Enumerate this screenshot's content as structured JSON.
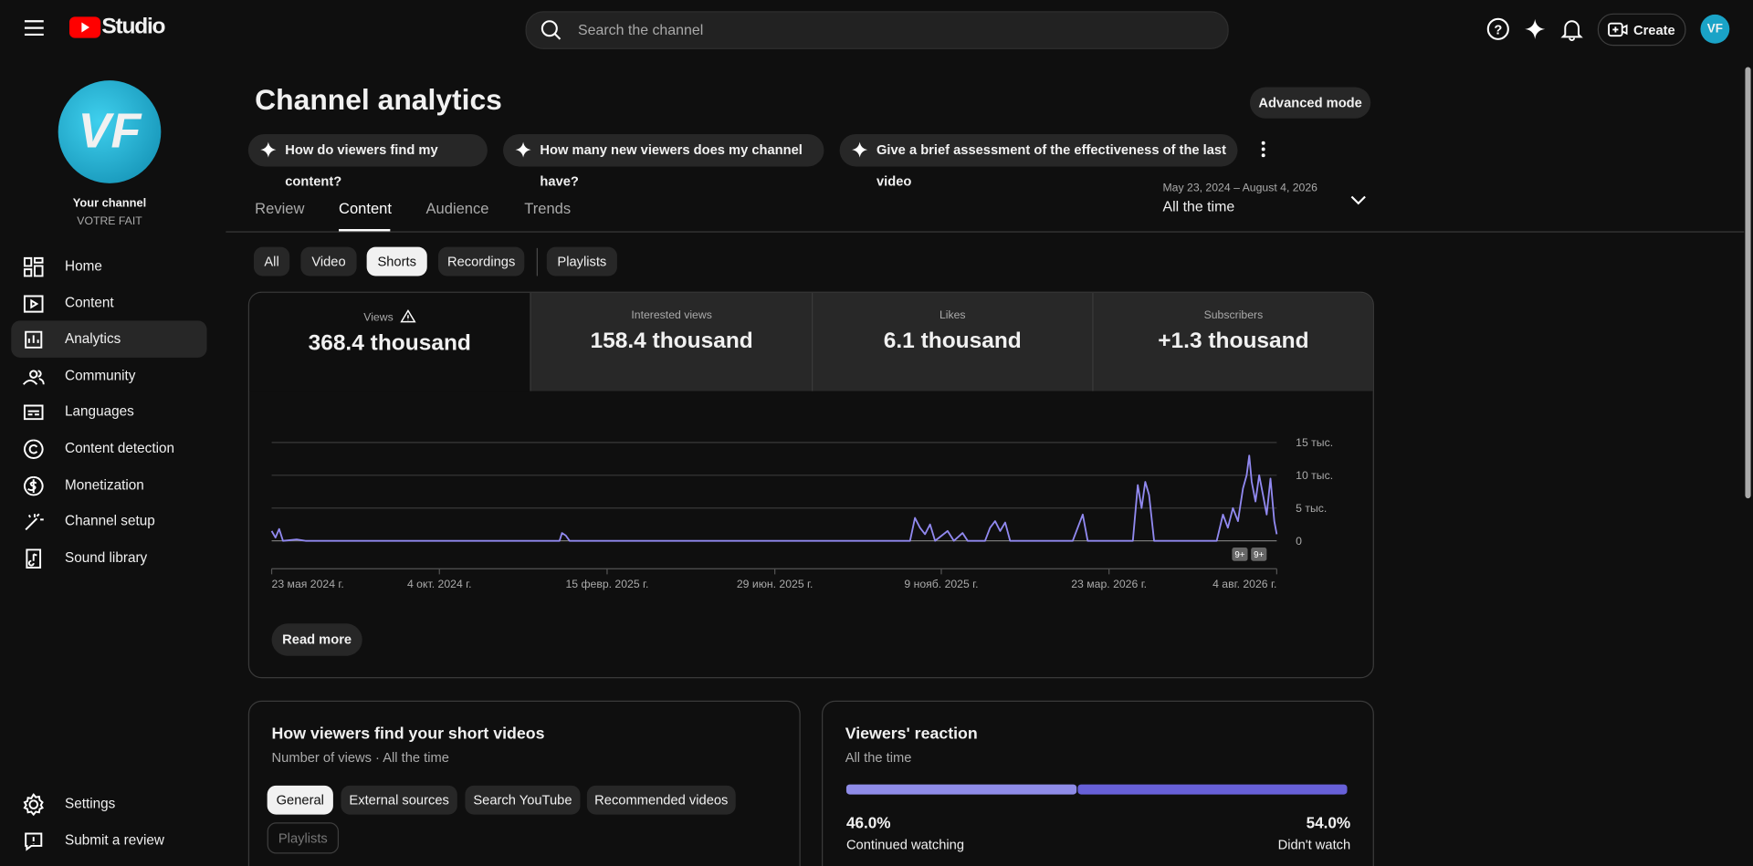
{
  "header": {
    "logo": "Studio",
    "search_placeholder": "Search the channel",
    "create": "Create",
    "avatar": "VF"
  },
  "sidebar": {
    "avatar": "VF",
    "channel_label": "Your channel",
    "channel_name": "VOTRE FAIT",
    "nav": [
      "Home",
      "Content",
      "Analytics",
      "Community",
      "Languages",
      "Content detection",
      "Monetization",
      "Channel setup",
      "Sound library"
    ],
    "active": "Analytics",
    "bottom": [
      "Settings",
      "Submit a review"
    ]
  },
  "page": {
    "title": "Channel analytics",
    "advanced_mode": "Advanced mode",
    "suggestions": [
      "How do viewers find my content?",
      "How many new viewers does my channel have?",
      "Give a brief assessment of the effectiveness of the last video"
    ],
    "tabs": [
      "Review",
      "Content",
      "Audience",
      "Trends"
    ],
    "active_tab": "Content",
    "date_range": "May 23, 2024 – August 4, 2026",
    "period": "All the time",
    "filters": [
      "All",
      "Video",
      "Shorts",
      "Recordings",
      "Playlists"
    ],
    "active_filter": "Shorts",
    "metrics": [
      {
        "label": "Views",
        "value": "368.4 thousand"
      },
      {
        "label": "Interested views",
        "value": "158.4 thousand"
      },
      {
        "label": "Likes",
        "value": "6.1 thousand"
      },
      {
        "label": "Subscribers",
        "value": "+1.3 thousand"
      }
    ],
    "read_more": "Read more"
  },
  "chart": {
    "type": "line",
    "ylim": [
      0,
      15000
    ],
    "yticks": [
      0,
      {
        "value": 5000,
        "label": "5 тыс."
      },
      {
        "value": 10000,
        "label": "10 тыс."
      },
      {
        "value": 15000,
        "label": "15 тыс."
      }
    ],
    "xlim": [
      0,
      803
    ],
    "xticks": [
      {
        "value": 0,
        "label": "23 мая 2024 г."
      },
      {
        "value": 134,
        "label": "4 окт. 2024 г."
      },
      {
        "value": 268,
        "label": "15 февр. 2025 г."
      },
      {
        "value": 402,
        "label": "29 июн. 2025 г."
      },
      {
        "value": 535,
        "label": "9 нояб. 2025 г."
      },
      {
        "value": 669,
        "label": "23 мар. 2026 г."
      },
      {
        "value": 803,
        "label": "4 авг. 2026 г."
      }
    ],
    "grid": true,
    "badges": [
      "9+",
      "9+"
    ],
    "series": [
      {
        "color": "#9189f0",
        "x": [
          0,
          3,
          6,
          9,
          20,
          27,
          230,
          232,
          235,
          238,
          510,
          514,
          518,
          522,
          526,
          530,
          540,
          545,
          552,
          556,
          570,
          574,
          578,
          582,
          586,
          590,
          640,
          645,
          648,
          652,
          688,
          692,
          695,
          698,
          701,
          705,
          755,
          760,
          764,
          768,
          772,
          776,
          779,
          781,
          783,
          786,
          789,
          792,
          795,
          798,
          801,
          803
        ],
        "values": [
          1500,
          500,
          1800,
          0,
          200,
          0,
          0,
          1200,
          800,
          0,
          0,
          3500,
          2000,
          1000,
          2500,
          0,
          1500,
          0,
          1200,
          0,
          0,
          2000,
          3000,
          1500,
          2800,
          0,
          0,
          2500,
          4000,
          0,
          0,
          8500,
          5000,
          9000,
          7000,
          0,
          0,
          4000,
          2000,
          5000,
          3000,
          8000,
          10000,
          13000,
          9000,
          6000,
          10000,
          7000,
          4000,
          9500,
          3000,
          1000
        ]
      }
    ]
  },
  "sources": {
    "title": "How viewers find your short videos",
    "subtitle": "Number of views · All the time",
    "chips": [
      "General",
      "External sources",
      "Search YouTube",
      "Recommended videos",
      "Playlists"
    ]
  },
  "reaction": {
    "title": "Viewers' reaction",
    "subtitle": "All the time",
    "items": [
      {
        "value": 46.0,
        "value_label": "46.0%",
        "label": "Continued watching",
        "color": "#8f8ce8"
      },
      {
        "value": 54.0,
        "value_label": "54.0%",
        "label": "Didn't watch",
        "color": "#6760d8"
      }
    ]
  }
}
